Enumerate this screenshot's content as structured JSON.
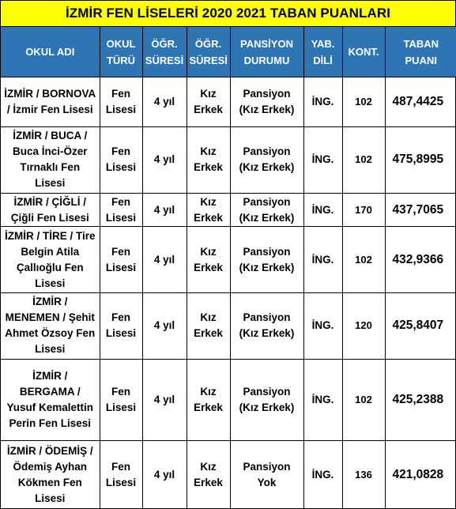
{
  "title": "İZMİR FEN LİSELERİ 2020 2021 TABAN PUANLARI",
  "headers": {
    "school": "OKUL ADI",
    "type": "OKUL TÜRÜ",
    "duration": "ÖĞR. SÜRESİ",
    "gender": "ÖĞR. SÜRESİ",
    "boarding": "PANSİYON DURUMU",
    "language": "YAB. DİLİ",
    "quota": "KONT.",
    "score": "TABAN PUANI"
  },
  "rows": [
    {
      "school": "İZMİR / BORNOVA / İzmir Fen Lisesi",
      "type": "Fen Lisesi",
      "duration": "4 yıl",
      "gender": "Kız Erkek",
      "boarding": "Pansiyon (Kız Erkek)",
      "language": "İNG.",
      "quota": "102",
      "score": "487,4425"
    },
    {
      "school": "İZMİR / BUCA / Buca İnci-Özer Tırnaklı Fen Lisesi",
      "type": "Fen Lisesi",
      "duration": "4 yıl",
      "gender": "Kız Erkek",
      "boarding": "Pansiyon (Kız Erkek)",
      "language": "İNG.",
      "quota": "102",
      "score": "475,8995"
    },
    {
      "school": "İZMİR / ÇİĞLİ / Çiğli Fen Lisesi",
      "type": "Fen Lisesi",
      "duration": "4 yıl",
      "gender": "Kız Erkek",
      "boarding": "Pansiyon (Kız Erkek)",
      "language": "İNG.",
      "quota": "170",
      "score": "437,7065"
    },
    {
      "school": "İZMİR / TİRE / Tire Belgin Atila Çallıoğlu Fen Lisesi",
      "type": "Fen Lisesi",
      "duration": "4 yıl",
      "gender": "Kız Erkek",
      "boarding": "Pansiyon (Kız Erkek)",
      "language": "İNG.",
      "quota": "102",
      "score": "432,9366"
    },
    {
      "school": "İZMİR / MENEMEN / Şehit Ahmet Özsoy Fen Lisesi",
      "type": "Fen Lisesi",
      "duration": "4 yıl",
      "gender": "Kız Erkek",
      "boarding": "Pansiyon (Kız Erkek)",
      "language": "İNG.",
      "quota": "120",
      "score": "425,8407"
    },
    {
      "school": "İZMİR / BERGAMA / Yusuf Kemalettin Perin Fen Lisesi",
      "type": "Fen Lisesi",
      "duration": "4 yıl",
      "gender": "Kız Erkek",
      "boarding": "Pansiyon (Kız Erkek)",
      "language": "İNG.",
      "quota": "102",
      "score": "425,2388"
    },
    {
      "school": "İZMİR / ÖDEMİŞ / Ödemiş Ayhan Kökmen Fen Lisesi",
      "type": "Fen Lisesi",
      "duration": "4 yıl",
      "gender": "Kız Erkek",
      "boarding": "Pansiyon Yok",
      "language": "İNG.",
      "quota": "136",
      "score": "421,0828"
    }
  ],
  "colors": {
    "title_bg": "#ffff00",
    "header_bg": "#2e75b6",
    "header_text": "#ffffff"
  }
}
